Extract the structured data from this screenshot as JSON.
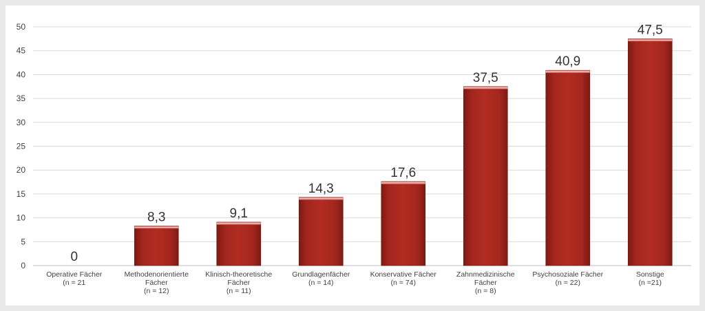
{
  "chart_data": {
    "type": "bar",
    "title": "",
    "xlabel": "",
    "ylabel": "",
    "ylim": [
      0,
      50
    ],
    "yticks": [
      "0",
      "5",
      "10",
      "15",
      "20",
      "25",
      "30",
      "35",
      "40",
      "45",
      "50"
    ],
    "grid": true,
    "legend": "none",
    "bar_color": "#a3261e",
    "categories": [
      [
        "Operative Fächer",
        "(n = 21"
      ],
      [
        "Methodenorientierte",
        "Fächer",
        "(n = 12)"
      ],
      [
        "Klinisch-theoretische",
        "Fächer",
        "(n = 11)"
      ],
      [
        "Grundlagenfächer",
        "(n = 14)"
      ],
      [
        "Konservative Fächer",
        "(n = 74)"
      ],
      [
        "Zahnmedizinische",
        "Fächer",
        "(n = 8)"
      ],
      [
        "Psychosoziale Fächer",
        "(n = 22)"
      ],
      [
        "Sonstige",
        "(n =21)"
      ]
    ],
    "values": [
      0,
      8.3,
      9.1,
      14.3,
      17.6,
      37.5,
      40.9,
      47.5
    ],
    "value_labels": [
      "0",
      "8,3",
      "9,1",
      "14,3",
      "17,6",
      "37,5",
      "40,9",
      "47,5"
    ]
  }
}
